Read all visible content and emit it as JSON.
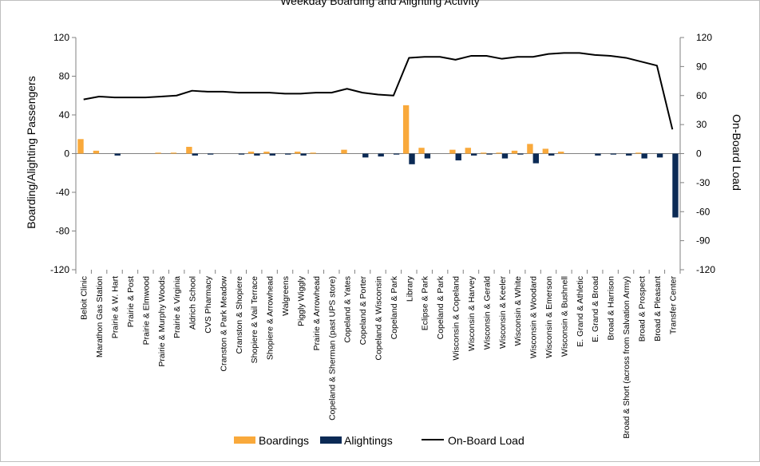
{
  "chart_data": {
    "type": "bar",
    "title": "Weekday Boarding and Alighting Activity",
    "ylabel": "Boarding/Alighting Passengers",
    "y2label": "On-Board Load",
    "ylim": [
      -120,
      120
    ],
    "y2lim": [
      -120,
      120
    ],
    "yticks": [
      "120",
      "80",
      "40",
      "0",
      "-40",
      "-80",
      "-120"
    ],
    "y2ticks": [
      "120",
      "90",
      "60",
      "30",
      "0",
      "-30",
      "-60",
      "-90",
      "-120"
    ],
    "legend_position": "bottom",
    "grid": false,
    "categories": [
      "Beloit Clinic",
      "Marathon Gas Station",
      "Prairie & W. Hart",
      "Prairie & Post",
      "Prairie & Elmwood",
      "Prairie & Murphy Woods",
      "Prairie & Virginia",
      "Aldrich School",
      "CVS Pharmacy",
      "Cranston & Park Meadow",
      "Cranston & Shopiere",
      "Shopiere & Vail Terrace",
      "Shopiere & Arrowhead",
      "Walgreens",
      "Piggly Wiggly",
      "Prairie & Arrowhead",
      "Copeland & Sherman (past UPS store)",
      "Copeland & Yates",
      "Copeland & Porter",
      "Copeland & Wisconsin",
      "Copeland & Park",
      "Library",
      "Eclipse & Park",
      "Copeland & Park",
      "Wisconsin & Copeland",
      "Wisconsin & Harvey",
      "Wisconsin & Gerald",
      "Wisconsin & Keeler",
      "Wisconsin & White",
      "Wisconsin & Woodard",
      "Wisconsin & Emerson",
      "Wisconsin & Bushnell",
      "E. Grand & Athletic",
      "E. Grand & Broad",
      "Broad & Harrison",
      "Broad & Short (across from Salvation Army)",
      "Broad & Prospect",
      "Broad & Pleasant",
      "Transfer Center"
    ],
    "series": [
      {
        "name": "Boardings",
        "type": "bar",
        "color": "#F9A93B",
        "axis": "left",
        "values": [
          15,
          3,
          0,
          0,
          0,
          1,
          1,
          7,
          0,
          0,
          0,
          2,
          2,
          0,
          2,
          1,
          0,
          4,
          0,
          0,
          0,
          50,
          6,
          0,
          4,
          6,
          1,
          1,
          3,
          10,
          5,
          2,
          0,
          0,
          0,
          0,
          1,
          0,
          0
        ]
      },
      {
        "name": "Alightings",
        "type": "bar",
        "color": "#0B2A55",
        "axis": "left",
        "values": [
          0,
          0,
          -2,
          0,
          0,
          0,
          0,
          -2,
          -1,
          0,
          -1,
          -2,
          -2,
          -1,
          -2,
          0,
          0,
          0,
          -4,
          -3,
          -1,
          -11,
          -5,
          0,
          -7,
          -2,
          -1,
          -5,
          -1,
          -10,
          -2,
          0,
          0,
          -2,
          -1,
          -2,
          -5,
          -4,
          -66
        ]
      },
      {
        "name": "On-Board Load",
        "type": "line",
        "color": "#000000",
        "axis": "right",
        "values": [
          56,
          59,
          58,
          58,
          58,
          59,
          60,
          65,
          64,
          64,
          63,
          63,
          63,
          62,
          62,
          63,
          63,
          67,
          63,
          61,
          60,
          99,
          100,
          100,
          97,
          101,
          101,
          98,
          100,
          100,
          103,
          104,
          104,
          102,
          101,
          99,
          95,
          91,
          25
        ]
      }
    ]
  }
}
